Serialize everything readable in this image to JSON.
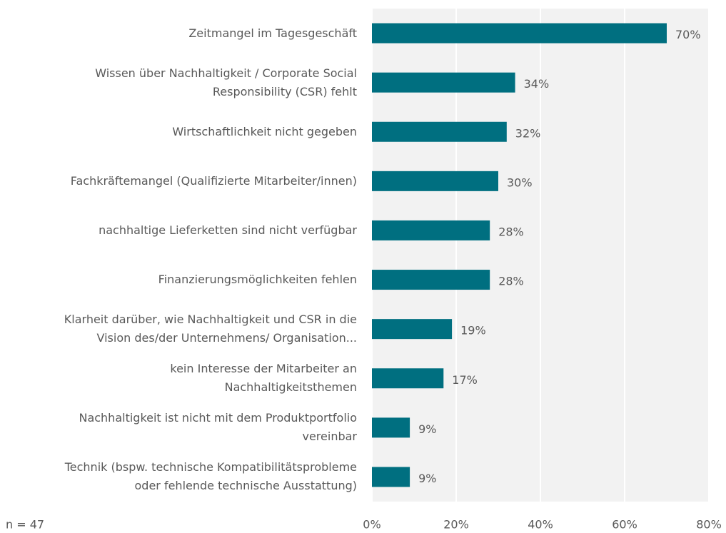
{
  "chart_data": {
    "type": "bar",
    "orientation": "horizontal",
    "categories": [
      "Zeitmangel im Tagesgeschäft",
      "Wissen über Nachhaltigkeit / Corporate Social\nResponsibility (CSR) fehlt",
      "Wirtschaftlichkeit nicht gegeben",
      "Fachkräftemangel (Qualifizierte Mitarbeiter/innen)",
      "nachhaltige Lieferketten sind nicht verfügbar",
      "Finanzierungsmöglichkeiten fehlen",
      "Klarheit darüber, wie Nachhaltigkeit und CSR in die\nVision des/der  Unternehmens/ Organisation...",
      "kein Interesse der Mitarbeiter an\nNachhaltigkeitsthemen",
      "Nachhaltigkeit ist nicht mit dem Produktportfolio\nvereinbar",
      "Technik (bspw. technische Kompatibilitätsprobleme\noder fehlende technische Ausstattung)"
    ],
    "values": [
      70,
      34,
      32,
      30,
      28,
      28,
      19,
      17,
      9,
      9
    ],
    "value_labels": [
      "70%",
      "34%",
      "32%",
      "30%",
      "28%",
      "28%",
      "19%",
      "17%",
      "9%",
      "9%"
    ],
    "color": "#006f80",
    "xlim": [
      0,
      80
    ],
    "xticks": [
      {
        "value": 0,
        "label": "0%"
      },
      {
        "value": 20,
        "label": "20%"
      },
      {
        "value": 40,
        "label": "40%"
      },
      {
        "value": 60,
        "label": "60%"
      },
      {
        "value": 80,
        "label": "80%"
      }
    ],
    "grid": true,
    "note": "n = 47"
  }
}
